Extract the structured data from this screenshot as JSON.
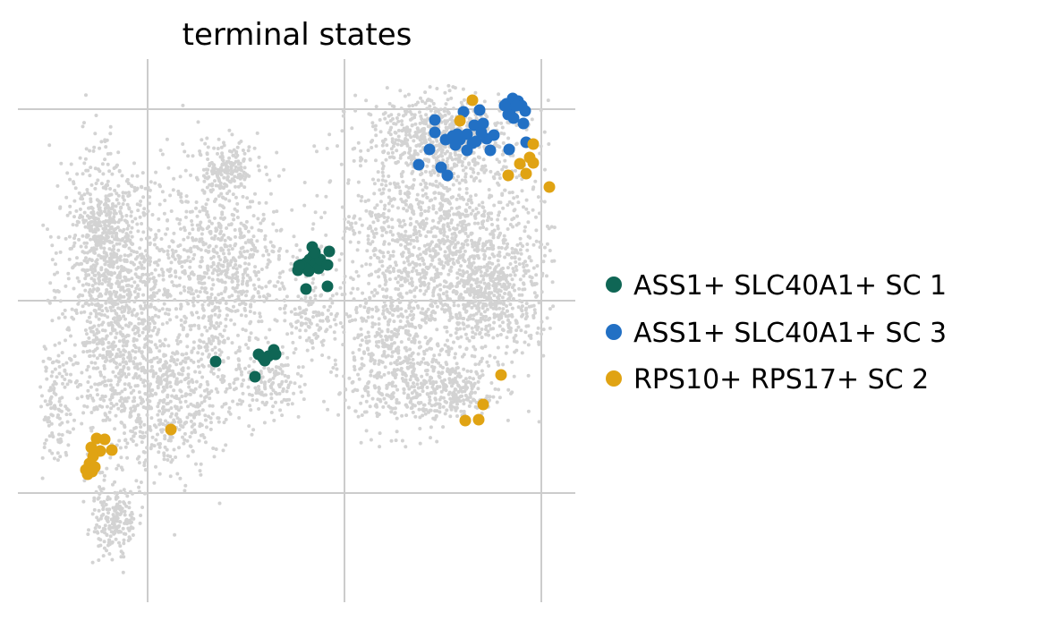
{
  "chart_data": {
    "type": "scatter",
    "title": "terminal states",
    "xlabel": "",
    "ylabel": "",
    "grid": true,
    "legend_position": "right",
    "background_color": "#d3d3d3",
    "background_description": "embedding of all cells",
    "series": [
      {
        "name": "ASS1+ SLC40A1+ SC 1",
        "color": "#0f6655",
        "points": [
          [
            333,
            302
          ],
          [
            338,
            298
          ],
          [
            342,
            294
          ],
          [
            346,
            290
          ],
          [
            350,
            286
          ],
          [
            349,
            276
          ],
          [
            352,
            295
          ],
          [
            356,
            300
          ],
          [
            345,
            303
          ],
          [
            340,
            299
          ],
          [
            336,
            296
          ],
          [
            358,
            290
          ],
          [
            366,
            296
          ],
          [
            368,
            281
          ],
          [
            366,
            320
          ],
          [
            342,
            323
          ],
          [
            334,
            297
          ],
          [
            352,
            282
          ],
          [
            241,
            404
          ],
          [
            285,
            421
          ],
          [
            289,
            396
          ],
          [
            296,
            403
          ],
          [
            300,
            398
          ],
          [
            306,
            391
          ],
          [
            308,
            396
          ],
          [
            294,
            400
          ]
        ]
      },
      {
        "name": "ASS1+ SLC40A1+ SC 3",
        "color": "#2270c4",
        "points": [
          [
            573,
            110
          ],
          [
            579,
            113
          ],
          [
            583,
            118
          ],
          [
            587,
            124
          ],
          [
            566,
            116
          ],
          [
            570,
            124
          ],
          [
            574,
            132
          ],
          [
            585,
            138
          ],
          [
            568,
            128
          ],
          [
            577,
            118
          ],
          [
            564,
            118
          ],
          [
            518,
            125
          ],
          [
            536,
            123
          ],
          [
            486,
            134
          ],
          [
            486,
            148
          ],
          [
            540,
            138
          ],
          [
            530,
            140
          ],
          [
            506,
            152
          ],
          [
            514,
            156
          ],
          [
            522,
            150
          ],
          [
            532,
            158
          ],
          [
            544,
            155
          ],
          [
            552,
            151
          ],
          [
            548,
            168
          ],
          [
            528,
            160
          ],
          [
            509,
            162
          ],
          [
            498,
            156
          ],
          [
            480,
            167
          ],
          [
            468,
            184
          ],
          [
            493,
            187
          ],
          [
            500,
            196
          ],
          [
            522,
            168
          ],
          [
            569,
            167
          ],
          [
            588,
            159
          ],
          [
            511,
            150
          ],
          [
            538,
            148
          ]
        ]
      },
      {
        "name": "RPS10+ RPS17+ SC 2",
        "color": "#e0a313",
        "points": [
          [
            528,
            112
          ],
          [
            514,
            135
          ],
          [
            596,
            161
          ],
          [
            592,
            176
          ],
          [
            596,
            182
          ],
          [
            581,
            183
          ],
          [
            568,
            196
          ],
          [
            588,
            194
          ],
          [
            614,
            209
          ],
          [
            560,
            419
          ],
          [
            540,
            452
          ],
          [
            535,
            469
          ],
          [
            520,
            470
          ],
          [
            191,
            480
          ],
          [
            108,
            490
          ],
          [
            117,
            491
          ],
          [
            102,
            500
          ],
          [
            112,
            504
          ],
          [
            125,
            503
          ],
          [
            104,
            510
          ],
          [
            100,
            518
          ],
          [
            106,
            522
          ],
          [
            96,
            525
          ],
          [
            98,
            530
          ],
          [
            103,
            527
          ]
        ]
      }
    ]
  }
}
